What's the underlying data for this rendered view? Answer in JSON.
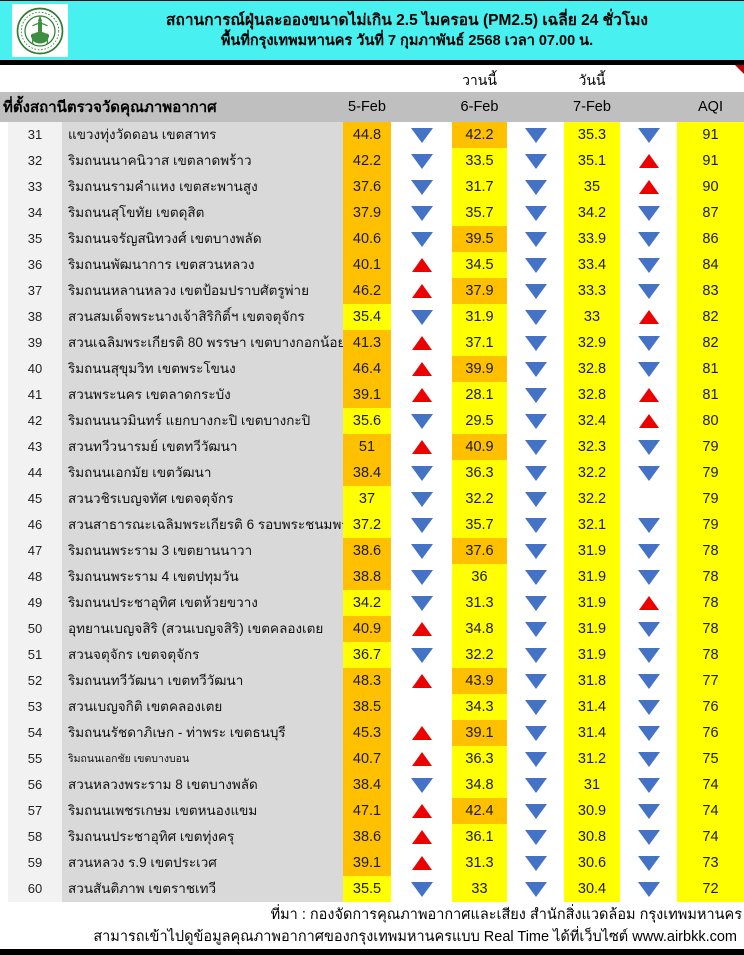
{
  "header": {
    "title_line1": "สถานการณ์ฝุ่นละอองขนาดไม่เกิน 2.5 ไมครอน (PM2.5) เฉลี่ย 24 ชั่วโมง",
    "title_line2": "พื้นที่กรุงเทพมหานคร วันที่ 7 กุมภาพันธ์ 2568 เวลา 07.00 น.",
    "logo": "bangkok-metropolitan-administration-seal"
  },
  "subheader": {
    "yesterday_label": "วานนี้",
    "today_label": "วันนี้"
  },
  "table": {
    "station_col_header": "ที่ตั้งสถานีตรวจวัดคุณภาพอากาศ",
    "col_d1": "5-Feb",
    "col_d2": "6-Feb",
    "col_d3": "7-Feb",
    "col_aqi": "AQI",
    "rows": [
      {
        "no": "31",
        "name": "แขวงทุ่งวัดดอน เขตสาทร",
        "v1": "44.8",
        "c1": "o",
        "a1": "down",
        "v2": "42.2",
        "c2": "o",
        "a2": "down",
        "v3": "35.3",
        "a3": "down",
        "aqi": "91"
      },
      {
        "no": "32",
        "name": "ริมถนนนาคนิวาส เขตลาดพร้าว",
        "v1": "42.2",
        "c1": "o",
        "a1": "down",
        "v2": "33.5",
        "c2": "y",
        "a2": "down",
        "v3": "35.1",
        "a3": "up",
        "aqi": "91"
      },
      {
        "no": "33",
        "name": "ริมถนนรามคำแหง เขตสะพานสูง",
        "v1": "37.6",
        "c1": "o",
        "a1": "down",
        "v2": "31.7",
        "c2": "y",
        "a2": "down",
        "v3": "35",
        "a3": "up",
        "aqi": "90"
      },
      {
        "no": "34",
        "name": "ริมถนนสุโขทัย เขตดุสิต",
        "v1": "37.9",
        "c1": "o",
        "a1": "down",
        "v2": "35.7",
        "c2": "y",
        "a2": "down",
        "v3": "34.2",
        "a3": "down",
        "aqi": "87"
      },
      {
        "no": "35",
        "name": "ริมถนนจรัญสนิทวงศ์ เขตบางพลัด",
        "v1": "40.6",
        "c1": "o",
        "a1": "down",
        "v2": "39.5",
        "c2": "o",
        "a2": "down",
        "v3": "33.9",
        "a3": "down",
        "aqi": "86"
      },
      {
        "no": "36",
        "name": "ริมถนนพัฒนาการ เขตสวนหลวง",
        "v1": "40.1",
        "c1": "o",
        "a1": "up",
        "v2": "34.5",
        "c2": "y",
        "a2": "down",
        "v3": "33.4",
        "a3": "down",
        "aqi": "84"
      },
      {
        "no": "37",
        "name": "ริมถนนหลานหลวง เขตป้อมปราบศัตรูพ่าย",
        "v1": "46.2",
        "c1": "o",
        "a1": "up",
        "v2": "37.9",
        "c2": "o",
        "a2": "down",
        "v3": "33.3",
        "a3": "down",
        "aqi": "83"
      },
      {
        "no": "38",
        "name": "สวนสมเด็จพระนางเจ้าสิริกิติ์ฯ เขตจตุจักร",
        "v1": "35.4",
        "c1": "y",
        "a1": "down",
        "v2": "31.9",
        "c2": "y",
        "a2": "down",
        "v3": "33",
        "a3": "up",
        "aqi": "82"
      },
      {
        "no": "39",
        "name": "สวนเฉลิมพระเกียรติ 80 พรรษา  เขตบางกอกน้อย",
        "v1": "41.3",
        "c1": "o",
        "a1": "up",
        "v2": "37.1",
        "c2": "y",
        "a2": "down",
        "v3": "32.9",
        "a3": "down",
        "aqi": "82"
      },
      {
        "no": "40",
        "name": "ริมถนนสุขุมวิท เขตพระโขนง",
        "v1": "46.4",
        "c1": "o",
        "a1": "up",
        "v2": "39.9",
        "c2": "o",
        "a2": "down",
        "v3": "32.8",
        "a3": "down",
        "aqi": "81"
      },
      {
        "no": "41",
        "name": "สวนพระนคร เขตลาดกระบัง",
        "v1": "39.1",
        "c1": "o",
        "a1": "up",
        "v2": "28.1",
        "c2": "y",
        "a2": "down",
        "v3": "32.8",
        "a3": "up",
        "aqi": "81"
      },
      {
        "no": "42",
        "name": "ริมถนนนวมินทร์ แยกบางกะปิ เขตบางกะปิ",
        "v1": "35.6",
        "c1": "y",
        "a1": "down",
        "v2": "29.5",
        "c2": "y",
        "a2": "down",
        "v3": "32.4",
        "a3": "up",
        "aqi": "80"
      },
      {
        "no": "43",
        "name": "สวนทวีวนารมย์ เขตทวีวัฒนา",
        "v1": "51",
        "c1": "o",
        "a1": "up",
        "v2": "40.9",
        "c2": "o",
        "a2": "down",
        "v3": "32.3",
        "a3": "down",
        "aqi": "79"
      },
      {
        "no": "44",
        "name": "ริมถนนเอกมัย เขตวัฒนา",
        "v1": "38.4",
        "c1": "o",
        "a1": "down",
        "v2": "36.3",
        "c2": "y",
        "a2": "down",
        "v3": "32.2",
        "a3": "down",
        "aqi": "79"
      },
      {
        "no": "45",
        "name": "สวนวชิรเบญจทัศ เขตจตุจักร",
        "v1": "37",
        "c1": "y",
        "a1": "down",
        "v2": "32.2",
        "c2": "y",
        "a2": "down",
        "v3": "32.2",
        "a3": "none",
        "aqi": "79"
      },
      {
        "no": "46",
        "name": "สวนสาธารณะเฉลิมพระเกียรติ 6 รอบพระชนมพรรษา เขต",
        "v1": "37.2",
        "c1": "y",
        "a1": "down",
        "v2": "35.7",
        "c2": "y",
        "a2": "down",
        "v3": "32.1",
        "a3": "down",
        "aqi": "79"
      },
      {
        "no": "47",
        "name": "ริมถนนพระราม 3 เขตยานนาวา",
        "v1": "38.6",
        "c1": "o",
        "a1": "down",
        "v2": "37.6",
        "c2": "o",
        "a2": "down",
        "v3": "31.9",
        "a3": "down",
        "aqi": "78"
      },
      {
        "no": "48",
        "name": "ริมถนนพระราม 4 เขตปทุมวัน",
        "v1": "38.8",
        "c1": "o",
        "a1": "down",
        "v2": "36",
        "c2": "y",
        "a2": "down",
        "v3": "31.9",
        "a3": "down",
        "aqi": "78"
      },
      {
        "no": "49",
        "name": "ริมถนนประชาอุทิศ เขตห้วยขวาง",
        "v1": "34.2",
        "c1": "y",
        "a1": "down",
        "v2": "31.3",
        "c2": "y",
        "a2": "down",
        "v3": "31.9",
        "a3": "up",
        "aqi": "78"
      },
      {
        "no": "50",
        "name": "อุทยานเบญจสิริ (สวนเบญจสิริ) เขตคลองเตย",
        "v1": "40.9",
        "c1": "o",
        "a1": "up",
        "v2": "34.8",
        "c2": "y",
        "a2": "down",
        "v3": "31.9",
        "a3": "down",
        "aqi": "78"
      },
      {
        "no": "51",
        "name": "สวนจตุจักร เขตจตุจักร",
        "v1": "36.7",
        "c1": "y",
        "a1": "down",
        "v2": "32.2",
        "c2": "y",
        "a2": "down",
        "v3": "31.9",
        "a3": "down",
        "aqi": "78"
      },
      {
        "no": "52",
        "name": "ริมถนนทวีวัฒนา เขตทวีวัฒนา",
        "v1": "48.3",
        "c1": "o",
        "a1": "up",
        "v2": "43.9",
        "c2": "o",
        "a2": "down",
        "v3": "31.8",
        "a3": "down",
        "aqi": "77"
      },
      {
        "no": "53",
        "name": "สวนเบญจกิติ  เขตคลองเตย",
        "v1": "38.5",
        "c1": "o",
        "a1": "none",
        "v2": "34.3",
        "c2": "y",
        "a2": "down",
        "v3": "31.4",
        "a3": "down",
        "aqi": "76"
      },
      {
        "no": "54",
        "name": "ริมถนนรัชดาภิเษก - ท่าพระ เขตธนบุรี",
        "v1": "45.3",
        "c1": "o",
        "a1": "up",
        "v2": "39.1",
        "c2": "o",
        "a2": "down",
        "v3": "31.4",
        "a3": "down",
        "aqi": "76"
      },
      {
        "no": "55",
        "name": "ริมถนนเอกชัย เขตบางบอน",
        "small": true,
        "v1": "40.7",
        "c1": "o",
        "a1": "up",
        "v2": "36.3",
        "c2": "y",
        "a2": "down",
        "v3": "31.2",
        "a3": "down",
        "aqi": "75"
      },
      {
        "no": "56",
        "name": "สวนหลวงพระราม 8 เขตบางพลัด",
        "v1": "38.4",
        "c1": "o",
        "a1": "down",
        "v2": "34.8",
        "c2": "y",
        "a2": "down",
        "v3": "31",
        "a3": "down",
        "aqi": "74"
      },
      {
        "no": "57",
        "name": "ริมถนนเพชรเกษม เขตหนองแขม",
        "v1": "47.1",
        "c1": "o",
        "a1": "up",
        "v2": "42.4",
        "c2": "o",
        "a2": "down",
        "v3": "30.9",
        "a3": "down",
        "aqi": "74"
      },
      {
        "no": "58",
        "name": "ริมถนนประชาอุทิศ เขตทุ่งครุ",
        "v1": "38.6",
        "c1": "o",
        "a1": "up",
        "v2": "36.1",
        "c2": "y",
        "a2": "down",
        "v3": "30.8",
        "a3": "down",
        "aqi": "74"
      },
      {
        "no": "59",
        "name": "สวนหลวง ร.9 เขตประเวศ",
        "v1": "39.1",
        "c1": "o",
        "a1": "up",
        "v2": "31.3",
        "c2": "y",
        "a2": "down",
        "v3": "30.6",
        "a3": "down",
        "aqi": "73"
      },
      {
        "no": "60",
        "name": "สวนสันติภาพ เขตราชเทวี",
        "v1": "35.5",
        "c1": "y",
        "a1": "down",
        "v2": "33",
        "c2": "y",
        "a2": "down",
        "v3": "30.4",
        "a3": "down",
        "aqi": "72"
      }
    ]
  },
  "footer": {
    "source_line": "ที่มา : กองจัดการคุณภาพอากาศและเสียง สำนักสิ่งแวดล้อม กรุงเทพมหานคร",
    "realtime_line": "สามารถเข้าไปดูข้อมูลคุณภาพอากาศของกรุงเทพมหานครแบบ Real Time ได้ที่เว็บไซต์ www.airbkk.com"
  },
  "colors": {
    "banner": "#48F0F0",
    "orange_cell": "#FFC000",
    "yellow_cell": "#FFFF00",
    "header_band": "#BFBFBF",
    "name_column": "#D9D9D9",
    "arrow_up": "#EE0000",
    "arrow_down": "#4472C4"
  }
}
